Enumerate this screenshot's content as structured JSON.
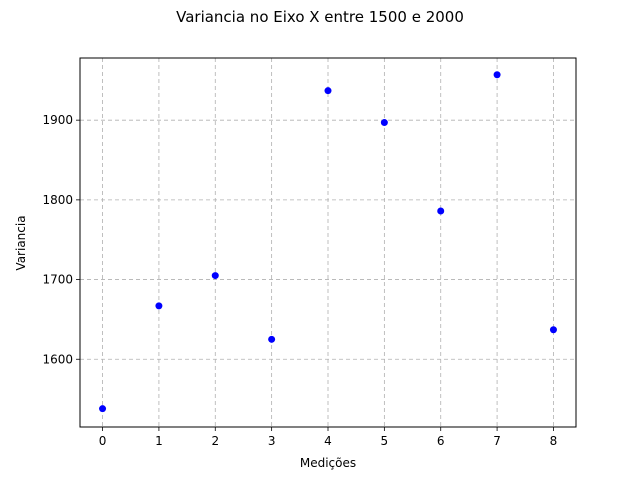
{
  "chart_data": {
    "type": "scatter",
    "title": "Variancia no Eixo X entre 1500 e 2000",
    "xlabel": "Medições",
    "ylabel": "Variancia",
    "x": [
      0,
      1,
      2,
      3,
      4,
      5,
      6,
      7,
      8
    ],
    "y": [
      1538,
      1667,
      1705,
      1625,
      1937,
      1897,
      1786,
      1957,
      1637
    ],
    "xlim": [
      -0.4,
      8.4
    ],
    "ylim": [
      1515,
      1978
    ],
    "xticks": [
      0,
      1,
      2,
      3,
      4,
      5,
      6,
      7,
      8
    ],
    "yticks": [
      1600,
      1700,
      1800,
      1900
    ],
    "grid": true,
    "grid_style": "dashed",
    "marker_color": "#0000ff",
    "grid_color": "#b0b0b0"
  }
}
